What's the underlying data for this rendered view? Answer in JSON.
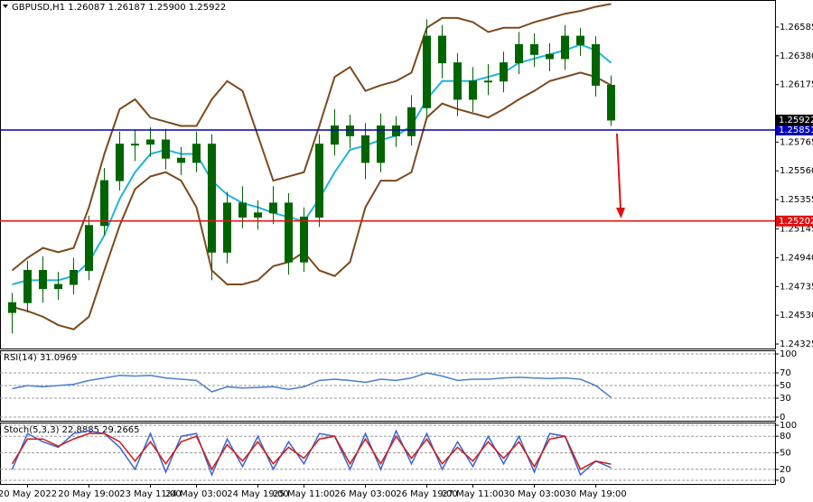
{
  "chart_data": [
    {
      "type": "candlestick",
      "title": "GBPUSD,H1 1.26087 1.26187 1.25900 1.25922",
      "categories": [
        null,
        "20 May 2022",
        null,
        null,
        null,
        "20 May 19:00",
        null,
        null,
        null,
        "23 May 11:00",
        null,
        null,
        "24 May 03:00",
        null,
        null,
        null,
        "24 May 19:00",
        null,
        null,
        "25 May 11:00",
        null,
        null,
        null,
        "26 May 03:00",
        null,
        null,
        null,
        "26 May 19:00",
        null,
        null,
        "27 May 11:00",
        null,
        null,
        null,
        "30 May 03:00",
        null,
        null,
        null,
        "30 May 19:00",
        null
      ],
      "open": [
        1.2455,
        1.2462,
        1.2485,
        1.2472,
        1.2475,
        1.2485,
        1.2517,
        1.2549,
        1.2575,
        1.2575,
        1.2578,
        1.2565,
        1.2562,
        1.2575,
        1.2498,
        1.2533,
        1.2523,
        1.2526,
        1.2533,
        1.2491,
        1.2523,
        1.2575,
        1.2588,
        1.2581,
        1.2562,
        1.2588,
        1.2581,
        1.2601,
        1.2652,
        1.2633,
        1.2607,
        1.262,
        1.262,
        1.2633,
        1.2646,
        1.2639,
        1.2636,
        1.2652,
        1.2646,
        1.2617
      ],
      "high": [
        1.2469,
        1.2492,
        1.2495,
        1.2484,
        1.2494,
        1.2524,
        1.2558,
        1.2584,
        1.2585,
        1.2587,
        1.2586,
        1.2573,
        1.2584,
        1.2582,
        1.2541,
        1.2545,
        1.2535,
        1.2545,
        1.254,
        1.253,
        1.2582,
        1.26,
        1.2596,
        1.259,
        1.2597,
        1.2595,
        1.261,
        1.2664,
        1.266,
        1.264,
        1.263,
        1.2632,
        1.2641,
        1.2655,
        1.2654,
        1.2647,
        1.266,
        1.2658,
        1.2652,
        1.2624
      ],
      "low": [
        1.244,
        1.2455,
        1.2462,
        1.2464,
        1.2468,
        1.2478,
        1.251,
        1.2542,
        1.2563,
        1.2566,
        1.2557,
        1.2553,
        1.2555,
        1.2478,
        1.249,
        1.2515,
        1.2514,
        1.2518,
        1.2482,
        1.2484,
        1.2516,
        1.2567,
        1.2572,
        1.255,
        1.2555,
        1.2573,
        1.2574,
        1.2594,
        1.2622,
        1.2595,
        1.2598,
        1.261,
        1.2612,
        1.2625,
        1.263,
        1.2627,
        1.2628,
        1.2638,
        1.2609,
        1.2588
      ],
      "close": [
        1.2462,
        1.2485,
        1.2472,
        1.2475,
        1.2485,
        1.2517,
        1.2549,
        1.2575,
        1.2575,
        1.2578,
        1.2565,
        1.2562,
        1.2575,
        1.2498,
        1.2533,
        1.2523,
        1.2526,
        1.2533,
        1.2491,
        1.2523,
        1.2575,
        1.2588,
        1.2581,
        1.2562,
        1.2588,
        1.2581,
        1.2601,
        1.2652,
        1.2633,
        1.2607,
        1.262,
        1.262,
        1.2633,
        1.2646,
        1.2639,
        1.2636,
        1.2652,
        1.2646,
        1.2617,
        1.25922
      ],
      "color": "#006400",
      "overlays": [
        {
          "color": "#1fb4e0",
          "values": [
            1.2475,
            1.2478,
            1.2478,
            1.2478,
            1.2481,
            1.2491,
            1.251,
            1.2536,
            1.2555,
            1.2568,
            1.2571,
            1.2568,
            1.2568,
            1.2549,
            1.2539,
            1.2533,
            1.253,
            1.2526,
            1.2523,
            1.252,
            1.2536,
            1.2555,
            1.2571,
            1.2574,
            1.2578,
            1.2581,
            1.2588,
            1.2607,
            1.262,
            1.262,
            1.262,
            1.2623,
            1.2626,
            1.2633,
            1.2636,
            1.2639,
            1.2642,
            1.2646,
            1.2642,
            1.2633
          ]
        },
        {
          "color": "#7b4a1e",
          "values": [
            1.2485,
            1.2494,
            1.2501,
            1.2498,
            1.2501,
            1.253,
            1.2568,
            1.26,
            1.2607,
            1.2594,
            1.2591,
            1.2588,
            1.2588,
            1.2607,
            1.262,
            1.2613,
            1.2581,
            1.2549,
            1.2552,
            1.2555,
            1.2588,
            1.2623,
            1.263,
            1.2613,
            1.2617,
            1.262,
            1.2626,
            1.2658,
            1.2665,
            1.2665,
            1.2662,
            1.2655,
            1.2658,
            1.2658,
            1.2662,
            1.2665,
            1.2668,
            1.267,
            1.2673,
            1.2675
          ]
        },
        {
          "color": "#7b4a1e",
          "values": [
            1.2459,
            1.2456,
            1.2452,
            1.2446,
            1.2443,
            1.2452,
            1.2485,
            1.2517,
            1.2543,
            1.2552,
            1.2555,
            1.2549,
            1.253,
            1.2485,
            1.2475,
            1.2475,
            1.2478,
            1.2488,
            1.2491,
            1.2498,
            1.2485,
            1.2481,
            1.2491,
            1.253,
            1.2549,
            1.2549,
            1.2555,
            1.2594,
            1.2604,
            1.26,
            1.2597,
            1.2594,
            1.26,
            1.2607,
            1.2613,
            1.262,
            1.2623,
            1.2626,
            1.2623,
            1.2617
          ]
        }
      ],
      "levels": [
        {
          "value": 1.25851,
          "color": "#0000b4"
        },
        {
          "value": 1.25202,
          "color": "#e01010"
        }
      ],
      "last": 1.25922,
      "ylim": [
        1.24293,
        1.26778
      ],
      "yticks": [
        1.26585,
        {
          "value": 1.2638,
          "label": "1.26380"
        },
        1.26175,
        1.25765,
        {
          "value": 1.2556,
          "label": "1.25560"
        },
        1.25355,
        1.25145,
        {
          "value": 1.2494,
          "label": "1.24940"
        },
        1.24735,
        {
          "value": 1.2453,
          "label": "1.24530"
        },
        1.24325
      ]
    },
    {
      "type": "line",
      "title": "RSI(14) 31.0969",
      "series": [
        {
          "color": "#4a7fd0",
          "values": [
            45,
            50,
            48,
            50,
            52,
            58,
            62,
            66,
            65,
            66,
            62,
            60,
            58,
            40,
            48,
            46,
            47,
            48,
            44,
            48,
            58,
            60,
            58,
            55,
            60,
            58,
            62,
            70,
            65,
            58,
            60,
            60,
            62,
            63,
            62,
            61,
            62,
            60,
            50,
            31.0969
          ]
        }
      ],
      "ylim": [
        0,
        100
      ],
      "yticks": [
        100,
        70,
        50,
        30,
        0
      ],
      "grid": true
    },
    {
      "type": "line",
      "title": "Stoch(5,3,3) 22.8885 29.2665",
      "series": [
        {
          "color": "#3c64d0",
          "values": [
            20,
            85,
            70,
            60,
            85,
            90,
            85,
            60,
            20,
            85,
            15,
            80,
            85,
            10,
            75,
            25,
            80,
            20,
            70,
            30,
            85,
            80,
            20,
            85,
            20,
            90,
            30,
            85,
            20,
            70,
            25,
            80,
            30,
            80,
            15,
            85,
            80,
            10,
            35,
            22.8885
          ]
        },
        {
          "color": "#d01818",
          "values": [
            30,
            75,
            75,
            62,
            75,
            85,
            85,
            70,
            35,
            70,
            30,
            70,
            80,
            20,
            65,
            35,
            70,
            30,
            60,
            40,
            75,
            80,
            30,
            75,
            30,
            80,
            40,
            75,
            30,
            60,
            35,
            70,
            40,
            70,
            25,
            75,
            80,
            20,
            35,
            29.2665
          ]
        }
      ],
      "ylim": [
        0,
        100
      ],
      "yticks": [
        100,
        80,
        50,
        20,
        0
      ],
      "grid": true
    }
  ]
}
